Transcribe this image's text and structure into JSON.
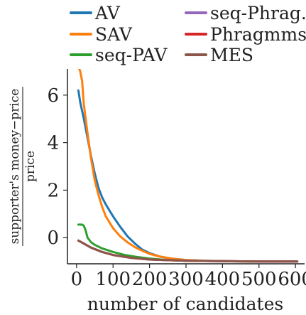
{
  "chart_data": {
    "type": "line",
    "xlabel": "number of candidates",
    "ylabel_numerator": "supporter's money−price",
    "ylabel_denominator": "price",
    "xlim": [
      -25,
      625
    ],
    "ylim": [
      -1.1,
      7.1
    ],
    "xticks": [
      "0",
      "100",
      "200",
      "300",
      "400",
      "500",
      "600"
    ],
    "yticks": [
      "0",
      "2",
      "4",
      "6"
    ],
    "legend_placement": "top",
    "grid": false,
    "series": [
      {
        "name": "AV",
        "color": "#1f77b4",
        "x": [
          5,
          10,
          20,
          30,
          40,
          50,
          60,
          70,
          80,
          100,
          120,
          140,
          160,
          180,
          200,
          230,
          260,
          300,
          350,
          400,
          450,
          500,
          550,
          605
        ],
        "y": [
          6.2,
          5.7,
          5.0,
          4.2,
          3.4,
          2.7,
          2.1,
          1.7,
          1.4,
          0.9,
          0.45,
          0.05,
          -0.25,
          -0.5,
          -0.65,
          -0.8,
          -0.88,
          -0.94,
          -0.97,
          -0.99,
          -1.0,
          -1.0,
          -1.0,
          -1.0
        ]
      },
      {
        "name": "SAV",
        "color": "#ff7f0e",
        "x": [
          5,
          10,
          15,
          20,
          30,
          40,
          50,
          60,
          70,
          80,
          100,
          120,
          140,
          160,
          180,
          200,
          230,
          260,
          300,
          350,
          400,
          450,
          500,
          550,
          605
        ],
        "y": [
          7.2,
          7.0,
          6.6,
          5.6,
          4.4,
          3.3,
          2.4,
          1.8,
          1.3,
          0.9,
          0.4,
          0.05,
          -0.2,
          -0.4,
          -0.55,
          -0.68,
          -0.8,
          -0.88,
          -0.94,
          -0.97,
          -0.99,
          -1.0,
          -1.0,
          -1.0,
          -1.0
        ]
      },
      {
        "name": "seq-PAV",
        "color": "#2ca02c",
        "x": [
          5,
          10,
          15,
          20,
          25,
          30,
          40,
          50,
          70,
          100,
          130,
          160,
          200,
          250,
          300,
          400,
          500,
          605
        ],
        "y": [
          0.55,
          0.55,
          0.55,
          0.5,
          0.3,
          0.0,
          -0.2,
          -0.3,
          -0.45,
          -0.6,
          -0.72,
          -0.8,
          -0.88,
          -0.94,
          -0.97,
          -0.99,
          -1.0,
          -1.0
        ]
      },
      {
        "name": "seq-Phrag.",
        "color": "#9467bd",
        "x": [
          5,
          20,
          40,
          70,
          100,
          150,
          200,
          300,
          400,
          500,
          605
        ],
        "y": [
          -0.12,
          -0.25,
          -0.42,
          -0.6,
          -0.73,
          -0.85,
          -0.92,
          -0.97,
          -0.99,
          -1.0,
          -1.0
        ]
      },
      {
        "name": "Phragmms",
        "color": "#d62728",
        "x": [
          5,
          20,
          40,
          70,
          100,
          150,
          200,
          300,
          400,
          500,
          605
        ],
        "y": [
          -0.12,
          -0.25,
          -0.42,
          -0.6,
          -0.73,
          -0.85,
          -0.92,
          -0.97,
          -0.99,
          -1.0,
          -1.0
        ]
      },
      {
        "name": "MES",
        "color": "#8c564b",
        "x": [
          5,
          20,
          40,
          70,
          100,
          150,
          200,
          300,
          400,
          500,
          605
        ],
        "y": [
          -0.12,
          -0.25,
          -0.42,
          -0.6,
          -0.73,
          -0.85,
          -0.92,
          -0.97,
          -0.99,
          -1.0,
          -1.0
        ]
      }
    ]
  }
}
